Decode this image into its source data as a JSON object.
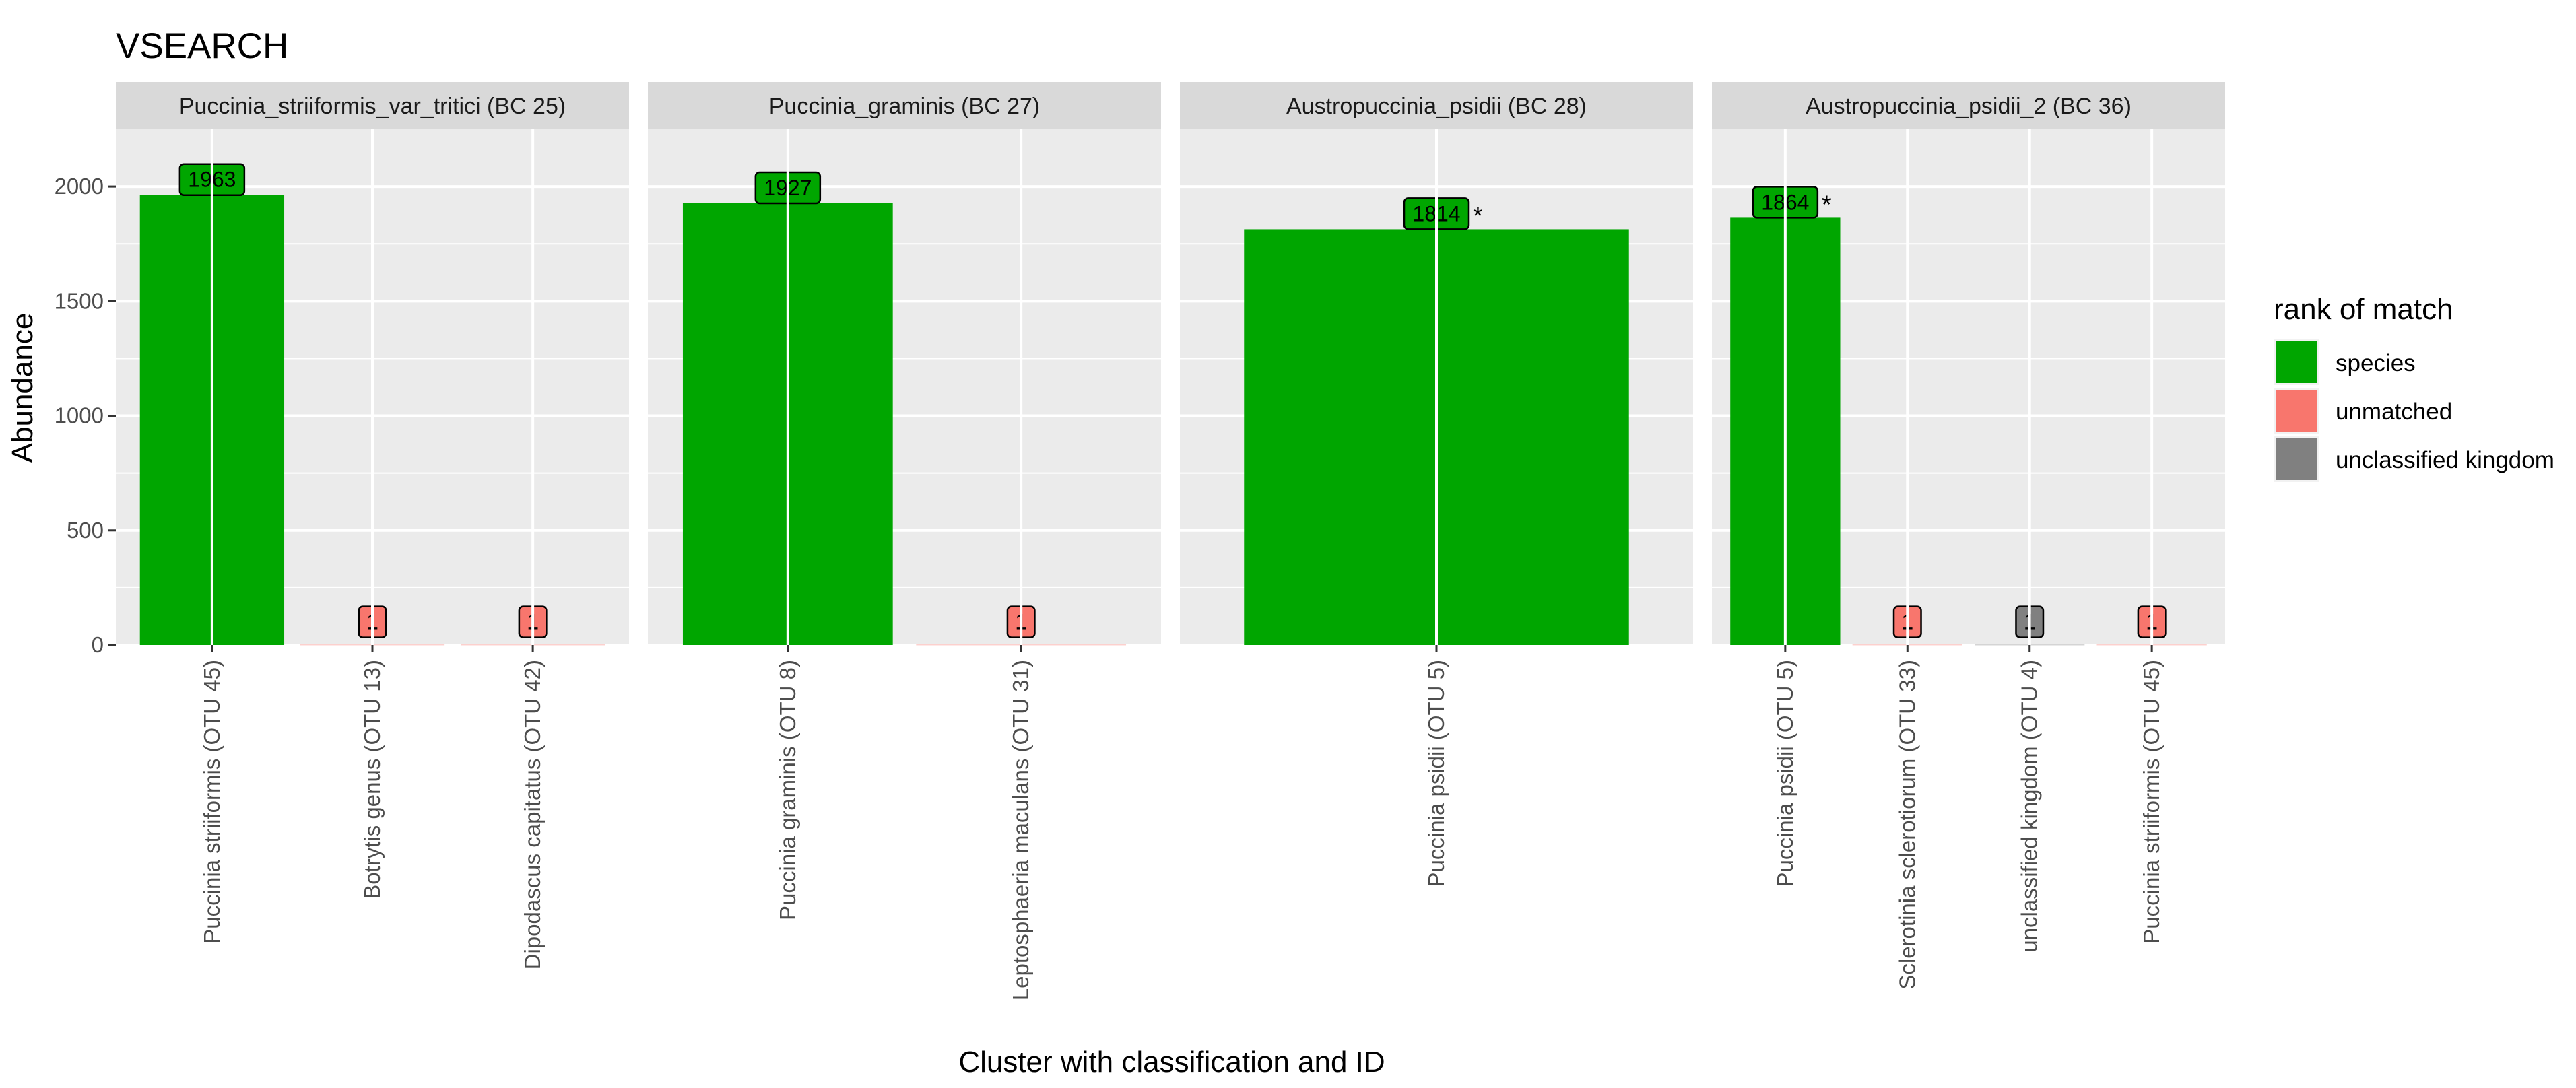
{
  "chart_data": {
    "type": "bar",
    "title": "VSEARCH",
    "xlabel": "Cluster with classification and ID",
    "ylabel": "Abundance",
    "ylim": [
      0,
      2250
    ],
    "y_ticks": [
      0,
      500,
      1000,
      1500,
      2000
    ],
    "grid": true,
    "legend": {
      "title": "rank of match",
      "placement": "right",
      "entries": [
        {
          "label": "species",
          "color": "#00a600"
        },
        {
          "label": "unmatched",
          "color": "#f8766d"
        },
        {
          "label": "unclassified kingdom",
          "color": "#808080"
        }
      ]
    },
    "facets": [
      {
        "title": "Puccinia_striiformis_var_tritici (BC 25)",
        "bars": [
          {
            "category": "Puccinia striiformis (OTU 45)",
            "value": 1963,
            "rank": "species",
            "label": "1963",
            "star": false
          },
          {
            "category": "Botrytis genus (OTU 13)",
            "value": 1,
            "rank": "unmatched",
            "label": "1",
            "star": false
          },
          {
            "category": "Dipodascus capitatus (OTU 42)",
            "value": 1,
            "rank": "unmatched",
            "label": "1",
            "star": false
          }
        ]
      },
      {
        "title": "Puccinia_graminis (BC 27)",
        "bars": [
          {
            "category": "Puccinia graminis (OTU 8)",
            "value": 1927,
            "rank": "species",
            "label": "1927",
            "star": false
          },
          {
            "category": "Leptosphaeria maculans (OTU 31)",
            "value": 1,
            "rank": "unmatched",
            "label": "1",
            "star": false
          }
        ]
      },
      {
        "title": "Austropuccinia_psidii (BC 28)",
        "bars": [
          {
            "category": "Puccinia psidii (OTU 5)",
            "value": 1814,
            "rank": "species",
            "label": "1814",
            "star": true
          }
        ]
      },
      {
        "title": "Austropuccinia_psidii_2 (BC 36)",
        "bars": [
          {
            "category": "Puccinia psidii (OTU 5)",
            "value": 1864,
            "rank": "species",
            "label": "1864",
            "star": true
          },
          {
            "category": "Sclerotinia sclerotiorum (OTU 33)",
            "value": 1,
            "rank": "unmatched",
            "label": "1",
            "star": false
          },
          {
            "category": "unclassified kingdom (OTU 4)",
            "value": 1,
            "rank": "unclassified kingdom",
            "label": "1",
            "star": false
          },
          {
            "category": "Puccinia striiformis (OTU 45)",
            "value": 1,
            "rank": "unmatched",
            "label": "1",
            "star": false
          }
        ]
      }
    ]
  }
}
